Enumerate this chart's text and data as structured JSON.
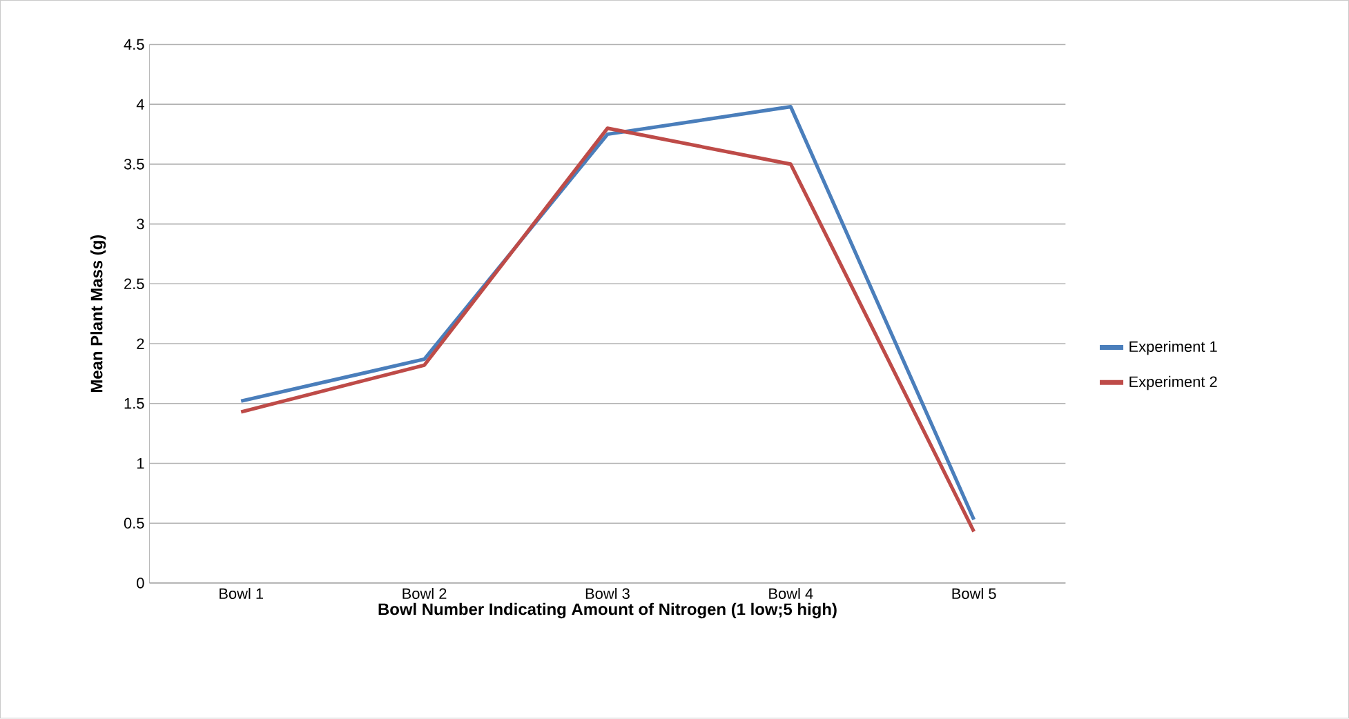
{
  "chart_data": {
    "type": "line",
    "xlabel": "Bowl Number Indicating Amount of Nitrogen (1 low;5 high)",
    "ylabel": "Mean Plant Mass (g)",
    "categories": [
      "Bowl 1",
      "Bowl 2",
      "Bowl 3",
      "Bowl 4",
      "Bowl 5"
    ],
    "series": [
      {
        "name": "Experiment 1",
        "color": "#4a7ebb",
        "values": [
          1.52,
          1.87,
          3.75,
          3.98,
          0.53
        ]
      },
      {
        "name": "Experiment 2",
        "color": "#be4b48",
        "values": [
          1.43,
          1.82,
          3.8,
          3.5,
          0.43
        ]
      }
    ],
    "ylim": [
      0,
      4.5
    ],
    "yticks": [
      0,
      0.5,
      1,
      1.5,
      2,
      2.5,
      3,
      3.5,
      4,
      4.5
    ],
    "grid": "y",
    "legend": "right",
    "marker": "none",
    "line_style": "solid"
  }
}
